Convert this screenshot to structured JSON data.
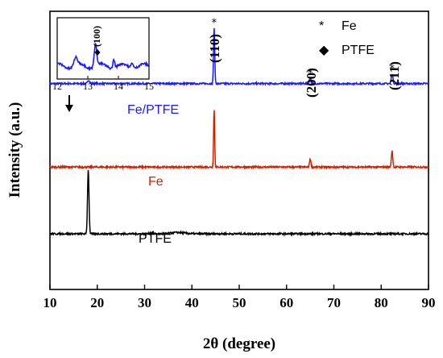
{
  "chart_data": {
    "type": "line",
    "xlabel": "2θ (degree)",
    "ylabel": "Intensity (a.u.)",
    "xlim": [
      10,
      90
    ],
    "x_ticks": [
      "10",
      "20",
      "30",
      "40",
      "50",
      "60",
      "70",
      "80",
      "90"
    ],
    "legend": [
      {
        "symbol": "*",
        "label": "Fe"
      },
      {
        "symbol": "◆",
        "label": "PTFE"
      }
    ],
    "series": [
      {
        "name": "Fe/PTFE",
        "color": "#1a1aff",
        "baseline": 0.74,
        "peaks": [
          {
            "x": 18.2,
            "h": 0.012,
            "w": 0.3
          },
          {
            "x": 44.7,
            "h": 0.2,
            "w": 0.18
          },
          {
            "x": 65.0,
            "h": 0.02,
            "w": 0.25
          },
          {
            "x": 82.3,
            "h": 0.035,
            "w": 0.25
          }
        ]
      },
      {
        "name": "Fe",
        "color": "#cc2200",
        "baseline": 0.44,
        "peaks": [
          {
            "x": 44.7,
            "h": 0.21,
            "w": 0.16
          },
          {
            "x": 65.0,
            "h": 0.03,
            "w": 0.2
          },
          {
            "x": 82.3,
            "h": 0.06,
            "w": 0.2
          }
        ]
      },
      {
        "name": "PTFE",
        "color": "#000000",
        "baseline": 0.2,
        "peaks": [
          {
            "x": 18.1,
            "h": 0.23,
            "w": 0.22
          },
          {
            "x": 31.5,
            "h": 0.004,
            "w": 0.5
          },
          {
            "x": 37.0,
            "h": 0.005,
            "w": 2.0
          }
        ]
      }
    ],
    "annotations": [
      {
        "text": "(110)",
        "x": 44.7
      },
      {
        "text": "(200)",
        "x": 65.0
      },
      {
        "text": "(211)",
        "x": 82.3
      }
    ],
    "inset": {
      "xlim": [
        12,
        15
      ],
      "x_ticks": [
        "12",
        "13",
        "14",
        "15"
      ],
      "annotation": "(100)",
      "peaks": [
        {
          "x": 12.6,
          "h": 0.2,
          "w": 0.08
        },
        {
          "x": 13.25,
          "h": 0.55,
          "w": 0.06
        },
        {
          "x": 13.85,
          "h": 0.22,
          "w": 0.04
        },
        {
          "x": 14.45,
          "h": 0.14,
          "w": 0.05
        }
      ]
    }
  }
}
